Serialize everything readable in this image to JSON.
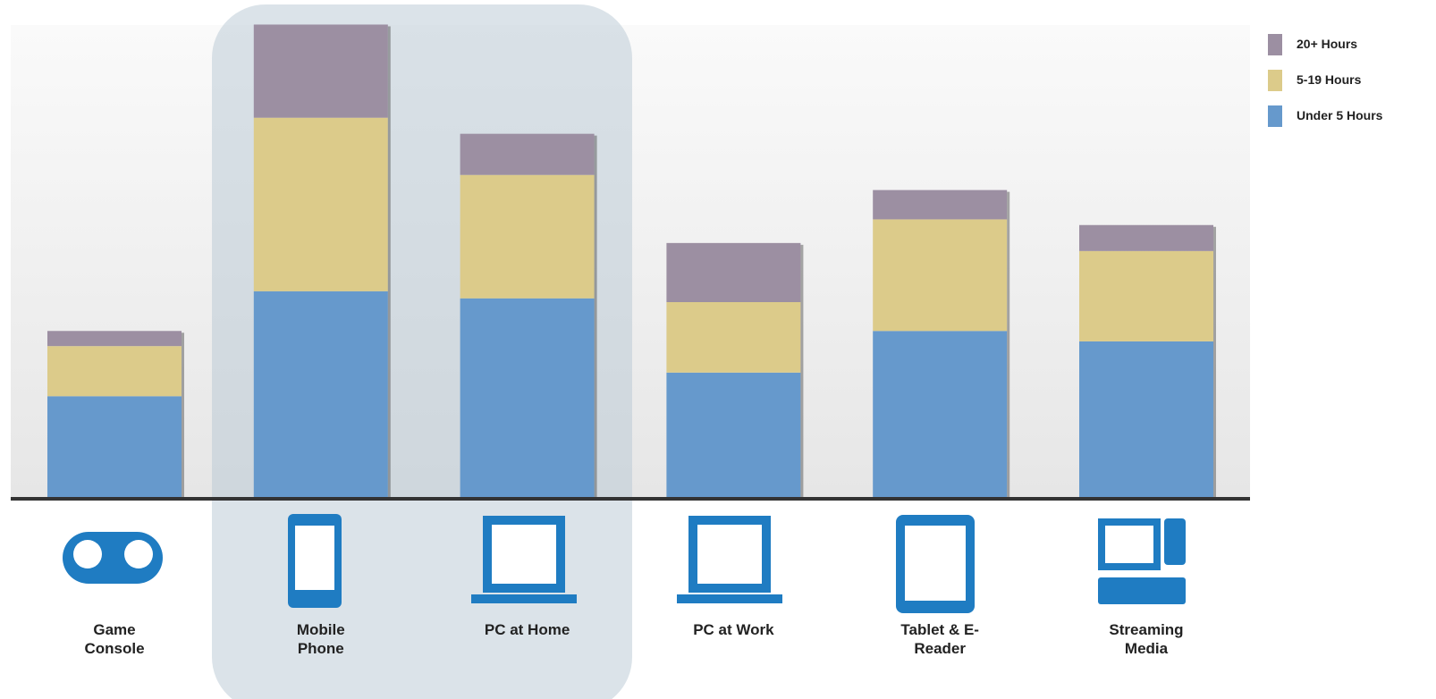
{
  "chart_data": {
    "type": "bar",
    "stacked": true,
    "categories": [
      "Game Console",
      "Mobile Phone",
      "PC at Home",
      "PC at Work",
      "Tablet & E-Reader",
      "Streaming Media"
    ],
    "series": [
      {
        "name": "Under 5 Hours",
        "color": "#6699cc",
        "values": [
          21.5,
          43.7,
          42.2,
          26.5,
          35.3,
          33.1
        ]
      },
      {
        "name": "5-19 Hours",
        "color": "#dccb8a",
        "values": [
          10.6,
          36.7,
          26.1,
          14.9,
          23.6,
          19.1
        ]
      },
      {
        "name": "20+ Hours",
        "color": "#9c8fa2",
        "values": [
          3.2,
          19.7,
          8.7,
          12.5,
          6.2,
          5.5
        ]
      }
    ],
    "ylim": [
      0,
      100
    ]
  }
}
